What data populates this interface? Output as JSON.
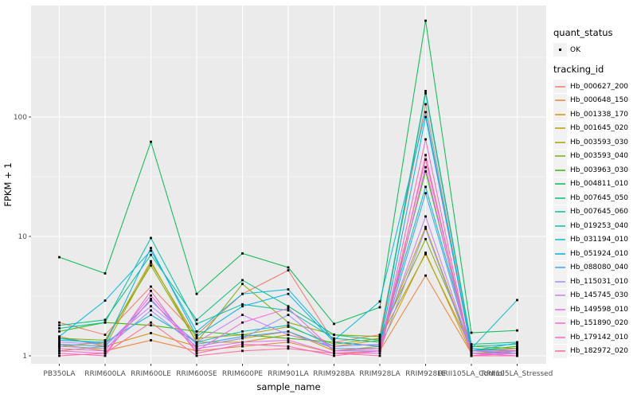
{
  "chart_data": {
    "type": "line",
    "title": "",
    "xlabel": "sample_name",
    "ylabel": "FPKM + 1",
    "y_scale": "log10",
    "y_ticks": [
      1,
      10,
      100
    ],
    "y_minor_gridlines": [
      3.1623,
      31.623,
      316.23
    ],
    "ylim": [
      0.85,
      860
    ],
    "grid": "white major+minor horizontal, white vertical at categories, on grey panel",
    "legend_position": "right",
    "panel_bg": "#EBEBEB",
    "grid_color": "#FFFFFF",
    "axis_text_color": "#4D4D4D",
    "axis_title_color": "#000000",
    "point_color": "#000000",
    "legend": {
      "quant_status_title": "quant_status",
      "quant_status_items": [
        "OK"
      ],
      "tracking_title": "tracking_id"
    },
    "categories": [
      "PB350LA",
      "RRIM600LA",
      "RRIM600LE",
      "RRIM600SE",
      "RRIM600PE",
      "RRIM901LA",
      "RRIM928BA",
      "RRIM928LA",
      "RRIM928LE",
      "RRII105LA_Control",
      "RRII105LA_Stressed"
    ],
    "series": [
      {
        "name": "Hb_000627_200",
        "color": "#F8766D",
        "values": [
          1.9,
          1.5,
          3.8,
          1.5,
          3.3,
          5.2,
          1.3,
          1.5,
          128,
          1.1,
          1.15
        ]
      },
      {
        "name": "Hb_000648_150",
        "color": "#EA8331",
        "values": [
          1.25,
          1.1,
          1.35,
          1.1,
          1.2,
          1.3,
          1.05,
          1.1,
          4.7,
          1.05,
          1.05
        ]
      },
      {
        "name": "Hb_001338_170",
        "color": "#D89000",
        "values": [
          1.45,
          1.2,
          1.55,
          1.2,
          1.4,
          1.6,
          1.1,
          1.2,
          7.3,
          1.05,
          1.1
        ]
      },
      {
        "name": "Hb_001645_020",
        "color": "#C09B00",
        "values": [
          1.2,
          1.3,
          6.2,
          1.3,
          1.3,
          1.5,
          1.2,
          1.35,
          12.0,
          1.1,
          1.05
        ]
      },
      {
        "name": "Hb_003593_030",
        "color": "#A3A500",
        "values": [
          1.1,
          1.2,
          6.0,
          1.4,
          1.5,
          1.75,
          1.25,
          1.4,
          7.1,
          1.15,
          1.1
        ]
      },
      {
        "name": "Hb_003593_040",
        "color": "#7CAE00",
        "values": [
          1.4,
          1.35,
          5.7,
          1.3,
          4.0,
          1.9,
          1.5,
          1.45,
          9.5,
          1.2,
          1.15
        ]
      },
      {
        "name": "Hb_003963_030",
        "color": "#39B600",
        "values": [
          1.6,
          1.9,
          1.8,
          1.6,
          1.5,
          1.4,
          1.3,
          1.2,
          35,
          1.1,
          1.2
        ]
      },
      {
        "name": "Hb_004811_010",
        "color": "#00BB4E",
        "values": [
          6.7,
          4.9,
          62,
          3.3,
          7.2,
          5.5,
          1.85,
          2.55,
          640,
          1.56,
          1.63
        ]
      },
      {
        "name": "Hb_007645_050",
        "color": "#00BF7D",
        "values": [
          1.8,
          2.0,
          7.0,
          2.0,
          4.3,
          2.6,
          1.5,
          1.35,
          165,
          1.25,
          1.3
        ]
      },
      {
        "name": "Hb_007645_060",
        "color": "#00C1A3",
        "values": [
          1.7,
          1.9,
          9.7,
          1.85,
          2.7,
          2.4,
          1.4,
          1.3,
          158,
          1.2,
          1.25
        ]
      },
      {
        "name": "Hb_019253_040",
        "color": "#00BFC4",
        "values": [
          1.35,
          1.3,
          2.2,
          1.3,
          1.6,
          1.8,
          1.2,
          1.25,
          26,
          1.15,
          2.93
        ]
      },
      {
        "name": "Hb_031194_010",
        "color": "#00BAE0",
        "values": [
          1.45,
          2.9,
          7.6,
          1.6,
          3.3,
          3.6,
          1.35,
          2.85,
          110,
          1.1,
          1.28
        ]
      },
      {
        "name": "Hb_051924_010",
        "color": "#00B0F6",
        "values": [
          1.4,
          1.25,
          8.0,
          1.45,
          2.6,
          3.3,
          1.3,
          1.2,
          100,
          1.15,
          1.1
        ]
      },
      {
        "name": "Hb_088080_040",
        "color": "#35A2FF",
        "values": [
          1.25,
          1.2,
          2.9,
          1.25,
          1.45,
          1.6,
          1.15,
          1.15,
          23,
          1.1,
          1.05
        ]
      },
      {
        "name": "Hb_115031_010",
        "color": "#9590FF",
        "values": [
          1.2,
          1.15,
          2.4,
          1.2,
          1.4,
          2.2,
          1.1,
          1.1,
          11.6,
          1.05,
          1.05
        ]
      },
      {
        "name": "Hb_145745_030",
        "color": "#C77CFF",
        "values": [
          1.3,
          1.25,
          2.6,
          1.3,
          2.2,
          1.5,
          1.2,
          1.25,
          14.7,
          1.1,
          1.1
        ]
      },
      {
        "name": "Hb_149598_010",
        "color": "#E76BF3",
        "values": [
          1.15,
          1.1,
          3.2,
          1.15,
          1.3,
          1.35,
          1.05,
          1.05,
          38,
          1.0,
          1.05
        ]
      },
      {
        "name": "Hb_151890_020",
        "color": "#FA62DB",
        "values": [
          1.1,
          1.05,
          3.0,
          1.1,
          1.9,
          2.5,
          1.1,
          1.15,
          44,
          1.05,
          1.0
        ]
      },
      {
        "name": "Hb_179142_010",
        "color": "#FF61C3",
        "values": [
          1.05,
          1.0,
          3.5,
          1.05,
          1.25,
          1.2,
          1.0,
          1.1,
          65,
          1.0,
          1.1
        ]
      },
      {
        "name": "Hb_182972_020",
        "color": "#FF6A98",
        "values": [
          1.0,
          1.05,
          1.9,
          1.0,
          1.1,
          1.15,
          1.05,
          1.0,
          48,
          1.0,
          1.0
        ]
      }
    ]
  }
}
